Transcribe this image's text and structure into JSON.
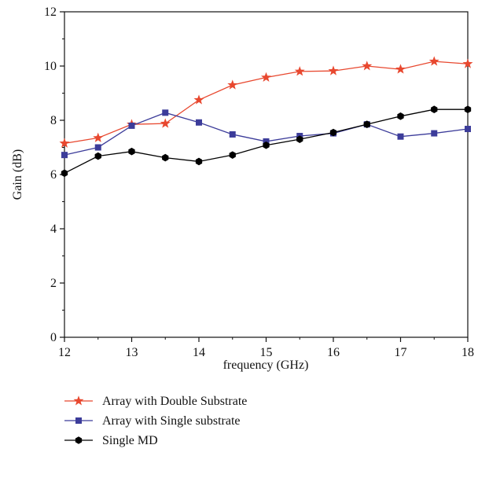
{
  "chart_data": {
    "type": "line",
    "title": "",
    "xlabel": "frequency (GHz)",
    "ylabel": "Gain (dB)",
    "xlim": [
      12,
      18
    ],
    "ylim": [
      0,
      12
    ],
    "xticks": [
      12,
      13,
      14,
      15,
      16,
      17,
      18
    ],
    "yticks": [
      0,
      2,
      4,
      6,
      8,
      10,
      12
    ],
    "grid": false,
    "legend_position": "bottom-left, below plot",
    "x": [
      12,
      12.5,
      13,
      13.5,
      14,
      14.5,
      15,
      15.5,
      16,
      16.5,
      17,
      17.5,
      18
    ],
    "series": [
      {
        "name": "Array with Double Substrate",
        "color": "#e8482f",
        "marker": "star",
        "values": [
          7.15,
          7.35,
          7.85,
          7.88,
          8.75,
          9.3,
          9.58,
          9.8,
          9.82,
          10.0,
          9.88,
          10.17,
          10.08
        ]
      },
      {
        "name": "Array with Single substrate",
        "color": "#3c3c9a",
        "marker": "square",
        "values": [
          6.72,
          7.0,
          7.8,
          8.28,
          7.92,
          7.48,
          7.22,
          7.42,
          7.52,
          7.85,
          7.4,
          7.52,
          7.68
        ]
      },
      {
        "name": "Single MD",
        "color": "#000000",
        "marker": "hexagon",
        "values": [
          6.05,
          6.68,
          6.85,
          6.62,
          6.48,
          6.72,
          7.08,
          7.3,
          7.55,
          7.85,
          8.15,
          8.4,
          8.4
        ]
      }
    ]
  }
}
